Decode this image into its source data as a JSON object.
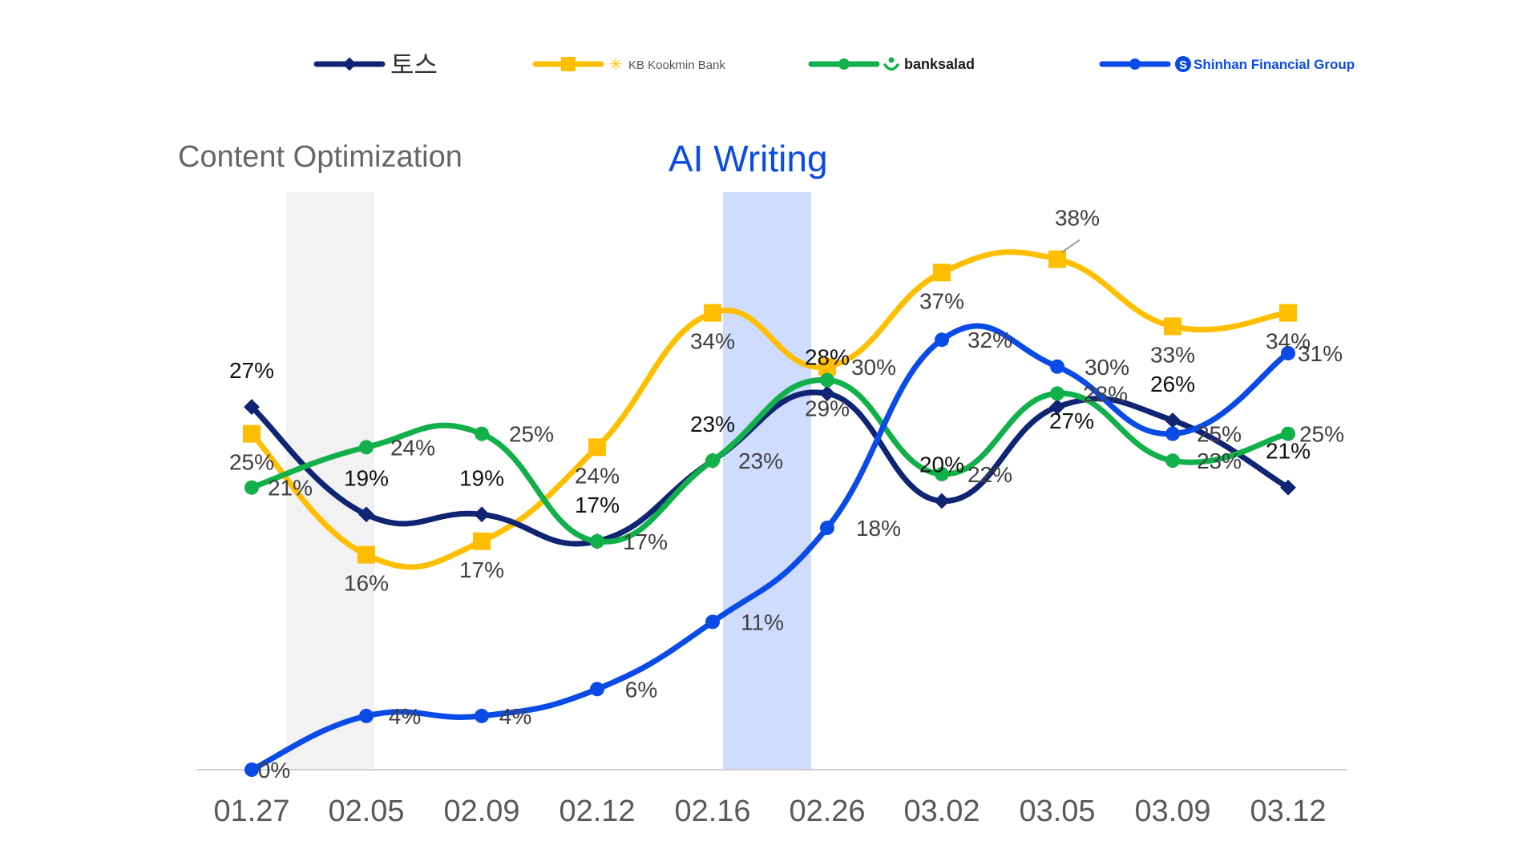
{
  "legend": [
    {
      "name": "토스",
      "color": "#0f2573",
      "marker": "diamond"
    },
    {
      "name": "KB Kookmin Bank",
      "color": "#ffbf00",
      "marker": "square",
      "logo": "kb-star-logo"
    },
    {
      "name": "banksalad",
      "color": "#12b04a",
      "marker": "circle",
      "logo": "banksalad-logo"
    },
    {
      "name": "Shinhan Financial Group",
      "color": "#0a4be8",
      "marker": "circle",
      "logo": "shinhan-s-logo"
    }
  ],
  "annotations": {
    "content_optimization": {
      "text": "Content Optimization",
      "color": "#666666",
      "highlight": "#f2f2f2"
    },
    "ai_writing": {
      "text": "AI Writing",
      "color": "#0a4be8",
      "highlight": "#cddcff"
    }
  },
  "chart_data": {
    "type": "line",
    "categories": [
      "01.27",
      "02.05",
      "02.09",
      "02.12",
      "02.16",
      "02.26",
      "03.02",
      "03.05",
      "03.09",
      "03.12"
    ],
    "ylim": [
      0,
      40
    ],
    "grid": false,
    "legend_position": "top",
    "series": [
      {
        "name": "토스",
        "values": [
          27,
          19,
          19,
          17,
          23,
          28,
          20,
          27,
          26,
          21
        ],
        "labels": [
          "27%",
          "19%",
          "19%",
          "17%",
          "23%",
          "28%",
          "20%",
          "27%",
          "26%",
          "21%"
        ]
      },
      {
        "name": "KB Kookmin Bank",
        "values": [
          25,
          16,
          17,
          24,
          34,
          30,
          37,
          38,
          33,
          34
        ],
        "labels": [
          "25%",
          "16%",
          "17%",
          "24%",
          "34%",
          "30%",
          "37%",
          "38%",
          "33%",
          "34%"
        ]
      },
      {
        "name": "banksalad",
        "values": [
          21,
          24,
          25,
          17,
          23,
          29,
          22,
          28,
          23,
          25
        ],
        "labels": [
          "21%",
          "24%",
          "25%",
          "17%",
          "23%",
          "29%",
          "22%",
          "28%",
          "23%",
          "25%"
        ]
      },
      {
        "name": "Shinhan Financial Group",
        "values": [
          0,
          4,
          4,
          6,
          11,
          18,
          32,
          30,
          25,
          31
        ],
        "labels": [
          "0%",
          "4%",
          "4%",
          "6%",
          "11%",
          "18%",
          "32%",
          "30%",
          "25%",
          "31%"
        ]
      }
    ]
  }
}
